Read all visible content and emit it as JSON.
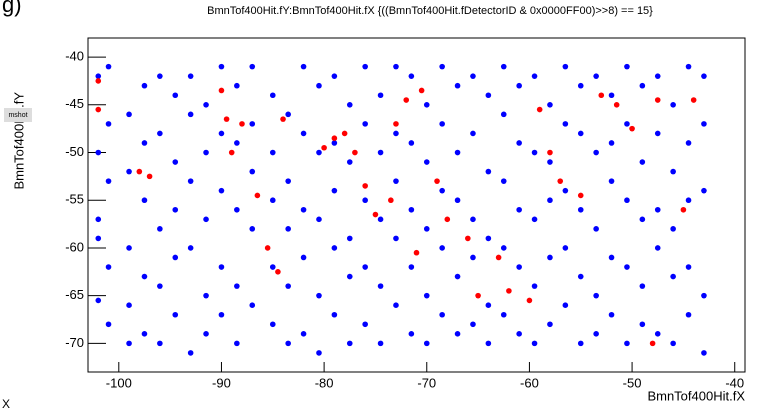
{
  "chart_data": {
    "type": "scatter",
    "title": "BmnTof400Hit.fY:BmnTof400Hit.fX {((BmnTof400Hit.fDetectorID & 0x0000FF00)>>8) == 15}",
    "x_label": "BmnTof400Hit.fX",
    "y_label": "BmnTof400Hit.fY",
    "annotations": [
      "g)",
      "mshot",
      "X"
    ],
    "xlim": [
      -103,
      -39
    ],
    "ylim": [
      -73,
      -38
    ],
    "xticks": [
      -100,
      -90,
      -80,
      -70,
      -60,
      -50,
      -40
    ],
    "yticks": [
      -40,
      -45,
      -50,
      -55,
      -60,
      -65,
      -70
    ],
    "series": [
      {
        "color": "#0000ff",
        "x": [
          -102,
          -102,
          -102,
          -102,
          -102,
          -101,
          -101,
          -101,
          -101,
          -101,
          -99,
          -99,
          -99,
          -99,
          -99,
          -97.5,
          -97.5,
          -97.5,
          -97.5,
          -97.5,
          -96,
          -96,
          -96,
          -96,
          -96,
          -94.5,
          -94.5,
          -94.5,
          -94.5,
          -94.5,
          -93,
          -93,
          -93,
          -93,
          -93,
          -91.5,
          -91.5,
          -91.5,
          -91.5,
          -91.5,
          -90,
          -90,
          -90,
          -90,
          -90,
          -88.5,
          -88.5,
          -88.5,
          -88.5,
          -88.5,
          -87,
          -87,
          -87,
          -87,
          -87,
          -85,
          -85,
          -85,
          -85,
          -85,
          -83.5,
          -83.5,
          -83.5,
          -83.5,
          -83.5,
          -82,
          -82,
          -82,
          -82,
          -82,
          -80.5,
          -80.5,
          -80.5,
          -80.5,
          -80.5,
          -79,
          -79,
          -79,
          -79,
          -79,
          -77.5,
          -77.5,
          -77.5,
          -77.5,
          -77.5,
          -76,
          -76,
          -76,
          -76,
          -76,
          -74.5,
          -74.5,
          -74.5,
          -74.5,
          -74.5,
          -73,
          -73,
          -73,
          -73,
          -73,
          -71.5,
          -71.5,
          -71.5,
          -71.5,
          -71.5,
          -70,
          -70,
          -70,
          -70,
          -70,
          -68.5,
          -68.5,
          -68.5,
          -68.5,
          -68.5,
          -67,
          -67,
          -67,
          -67,
          -67,
          -65.5,
          -65.5,
          -65.5,
          -65.5,
          -65.5,
          -64,
          -64,
          -64,
          -64,
          -64,
          -62.5,
          -62.5,
          -62.5,
          -62.5,
          -62.5,
          -61,
          -61,
          -61,
          -61,
          -61,
          -59.5,
          -59.5,
          -59.5,
          -59.5,
          -59.5,
          -58,
          -58,
          -58,
          -58,
          -58,
          -56.5,
          -56.5,
          -56.5,
          -56.5,
          -56.5,
          -55,
          -55,
          -55,
          -55,
          -55,
          -53.5,
          -53.5,
          -53.5,
          -53.5,
          -53.5,
          -52,
          -52,
          -52,
          -52,
          -52,
          -50.5,
          -50.5,
          -50.5,
          -50.5,
          -50.5,
          -49,
          -49,
          -49,
          -49,
          -49,
          -47.5,
          -47.5,
          -47.5,
          -47.5,
          -47.5,
          -46,
          -46,
          -46,
          -46,
          -46,
          -44.5,
          -44.5,
          -44.5,
          -44.5,
          -44.5,
          -43,
          -43,
          -43,
          -43,
          -43
        ],
        "values": [
          -42,
          -50,
          -57,
          -65.5,
          -59,
          -41,
          -47,
          -53,
          -62,
          -68,
          -46,
          -52,
          -60,
          -66,
          -70,
          -43,
          -49,
          -55,
          -63,
          -69,
          -42,
          -48,
          -58,
          -64,
          -70,
          -44,
          -51,
          -56,
          -61,
          -67,
          -42,
          -46,
          -53,
          -60,
          -71,
          -45,
          -50,
          -57,
          -65,
          -69,
          -41,
          -48,
          -54,
          -62,
          -67,
          -43,
          -49,
          -56,
          -64,
          -70,
          -41,
          -47,
          -52,
          -58,
          -66,
          -44,
          -50,
          -55,
          -62,
          -68,
          -46,
          -53,
          -58,
          -64,
          -70,
          -41,
          -48,
          -56,
          -61,
          -69,
          -43,
          -50,
          -57,
          -65,
          -71,
          -42,
          -49,
          -54,
          -60,
          -67,
          -45,
          -51,
          -59,
          -63,
          -70,
          -41,
          -47,
          -55,
          -62,
          -68,
          -44,
          -50,
          -57,
          -64,
          -70,
          -41,
          -48,
          -53,
          -59,
          -66,
          -42,
          -49,
          -56,
          -62,
          -69,
          -45,
          -51,
          -58,
          -65,
          -70,
          -41,
          -47,
          -54,
          -60,
          -67,
          -43,
          -50,
          -55,
          -63,
          -69,
          -42,
          -48,
          -57,
          -61,
          -68,
          -44,
          -52,
          -59,
          -66,
          -70,
          -41,
          -46,
          -53,
          -60,
          -67,
          -43,
          -49,
          -56,
          -62,
          -69,
          -42,
          -50,
          -57,
          -64,
          -70,
          -45,
          -51,
          -55,
          -61,
          -68,
          -41,
          -47,
          -54,
          -60,
          -66,
          -43,
          -48,
          -56,
          -63,
          -70,
          -42,
          -50,
          -58,
          -65,
          -69,
          -44,
          -49,
          -53,
          -61,
          -67,
          -41,
          -47,
          -55,
          -62,
          -70,
          -43,
          -51,
          -57,
          -64,
          -68,
          -42,
          -48,
          -56,
          -60,
          -69,
          -45,
          -52,
          -58,
          -63,
          -70,
          -41,
          -49,
          -55,
          -62,
          -67,
          -42,
          -47,
          -54,
          -65,
          -71
        ]
      },
      {
        "color": "#ff0000",
        "x": [
          -102,
          -102,
          -98,
          -97,
          -90,
          -89.5,
          -89,
          -88,
          -86.5,
          -85.5,
          -84.5,
          -84,
          -80,
          -79,
          -78,
          -77,
          -76,
          -75,
          -73.5,
          -73,
          -72,
          -71,
          -70.5,
          -69,
          -68,
          -66,
          -65,
          -63,
          -62,
          -60,
          -59,
          -58,
          -57,
          -55,
          -53,
          -51.5,
          -50,
          -48,
          -47.5,
          -45,
          -44
        ],
        "values": [
          -45.5,
          -42.5,
          -52,
          -52.5,
          -43.5,
          -46.5,
          -50,
          -47,
          -54.5,
          -60,
          -62.5,
          -46.5,
          -49.5,
          -48.5,
          -48,
          -50,
          -53.5,
          -56.5,
          -55,
          -47,
          -44.5,
          -60.5,
          -43.5,
          -53,
          -57,
          -59,
          -65,
          -61,
          -64.5,
          -65.5,
          -45.5,
          -50,
          -53,
          -54.5,
          -44,
          -45,
          -47.5,
          -70,
          -44.5,
          -56,
          -44.5
        ]
      }
    ]
  }
}
